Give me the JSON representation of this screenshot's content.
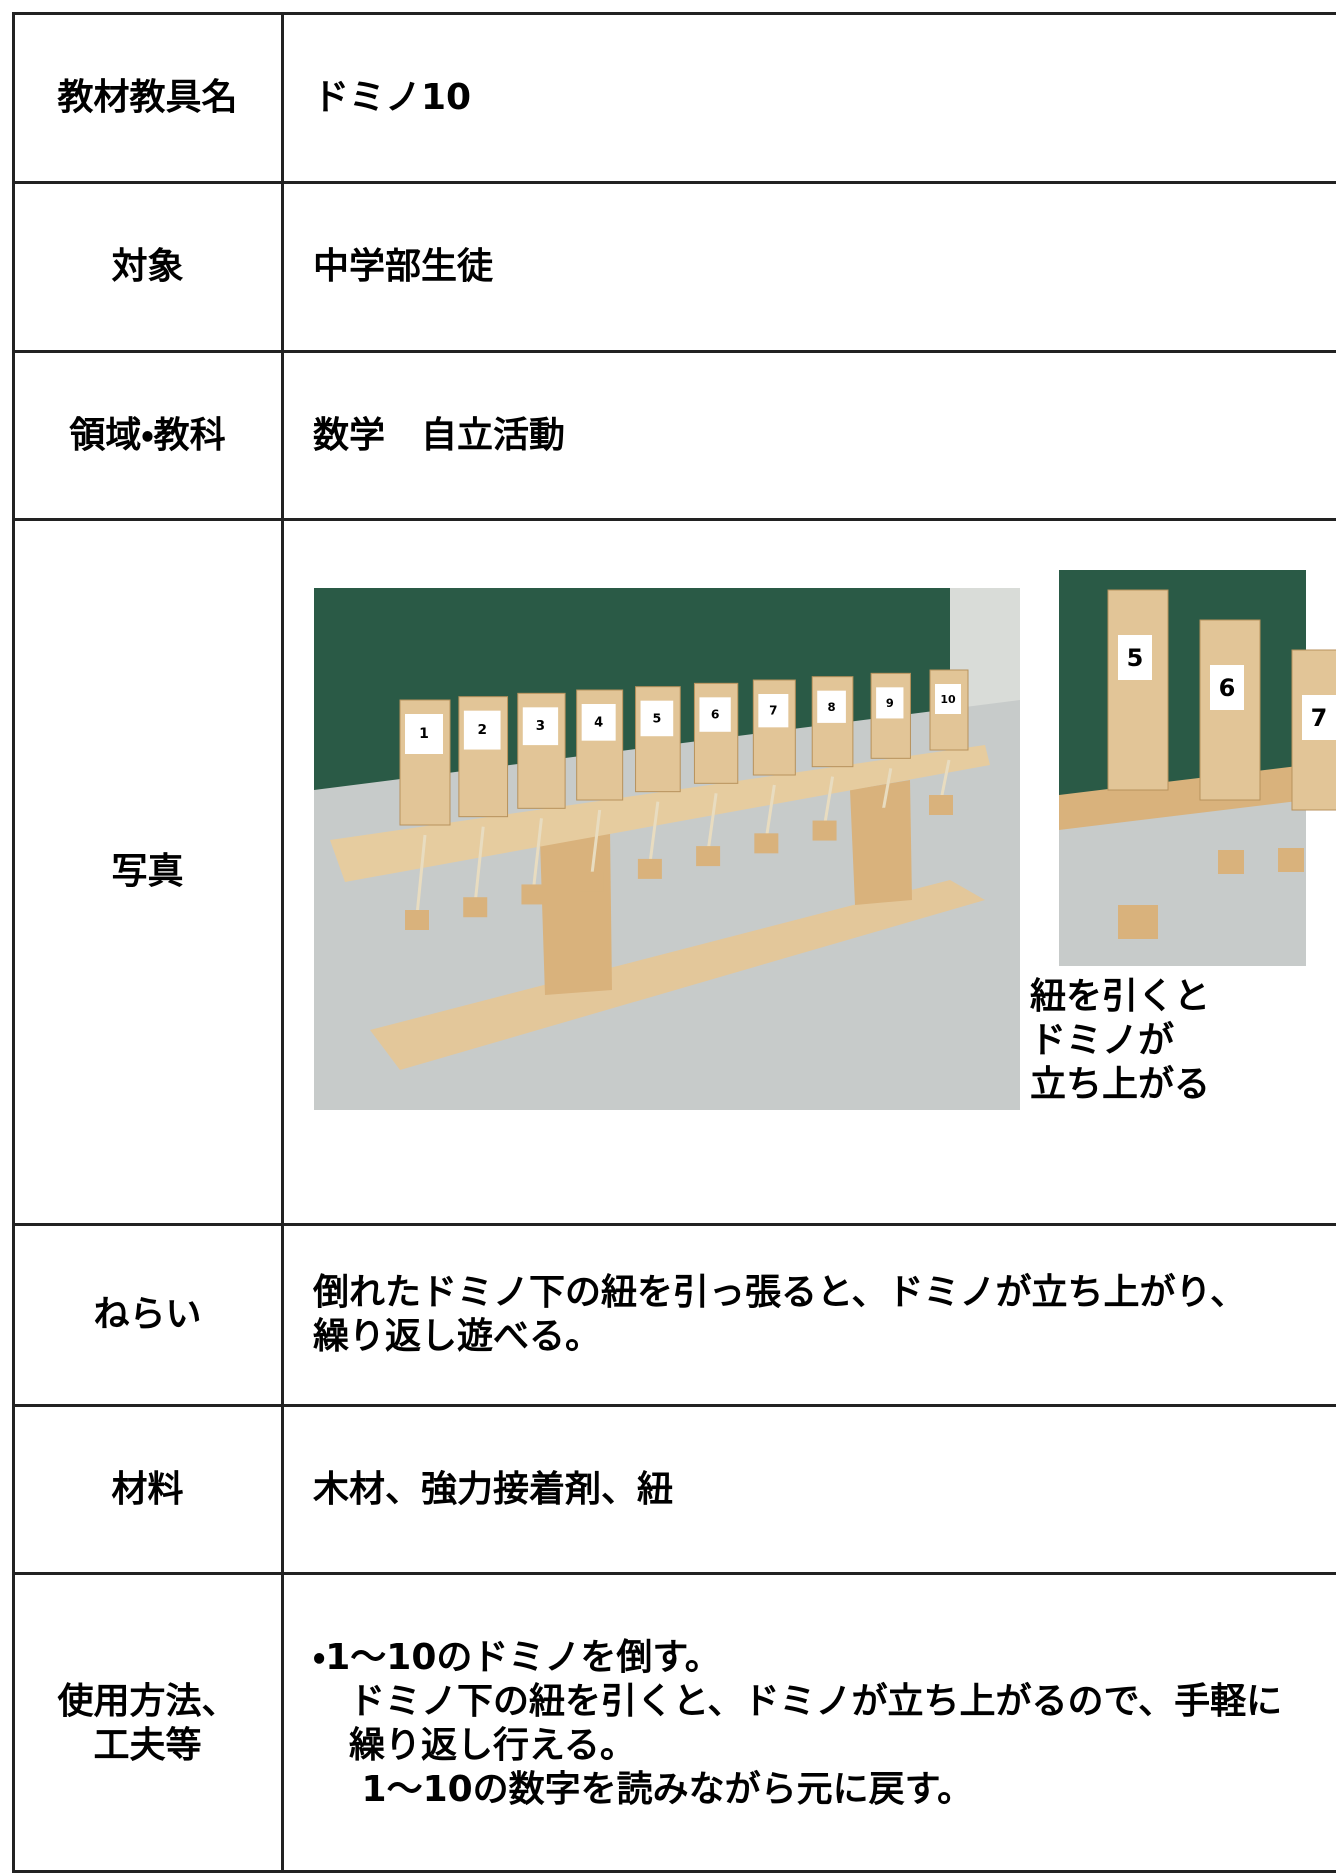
{
  "rows": [
    {
      "label": [
        "教材教具名"
      ],
      "content": [
        "ドミノ10"
      ]
    },
    {
      "label": [
        "対象"
      ],
      "content": [
        "中学部生徒"
      ]
    },
    {
      "label": [
        "領域・教科"
      ],
      "content": [
        "数学　自立活動"
      ]
    },
    {
      "label": [
        "写真"
      ],
      "content": []
    },
    {
      "label": [
        "ねらい"
      ],
      "content": [
        "倒れたドミノ下の紐を引っ張ると、ドミノが立ち上がり、",
        "繰り返し遊べる。"
      ]
    },
    {
      "label": [
        "材料"
      ],
      "content": [
        "木材、強力接着剤、紐"
      ]
    },
    {
      "label": [
        "使用方法、",
        "工夫等"
      ],
      "content": [
        "・1～10のドミノを倒す。",
        "　ドミノ下の紐を引くと、ドミノが立ち上がるので、手軽に",
        "　繰り返し行える。",
        "　 1～10の数字を読みながら元に戻す。"
      ]
    }
  ],
  "photo": {
    "domino_numbers": [
      "1",
      "2",
      "3",
      "4",
      "5",
      "6",
      "7",
      "8",
      "9",
      "10"
    ],
    "inset_numbers": [
      "5",
      "6",
      "7"
    ],
    "caption": [
      "紐を引くと",
      "ドミノが",
      "立ち上がる"
    ]
  }
}
